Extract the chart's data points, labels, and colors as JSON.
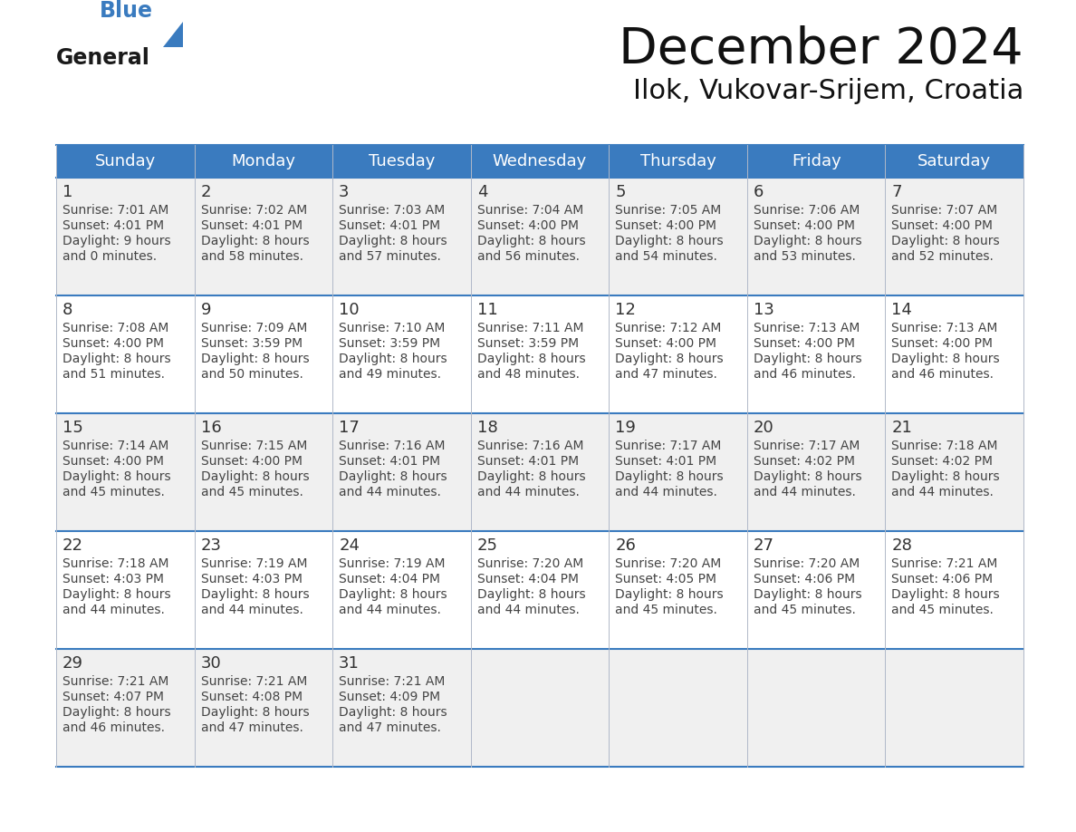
{
  "title": "December 2024",
  "subtitle": "Ilok, Vukovar-Srijem, Croatia",
  "days_of_week": [
    "Sunday",
    "Monday",
    "Tuesday",
    "Wednesday",
    "Thursday",
    "Friday",
    "Saturday"
  ],
  "header_bg": "#3a7bbf",
  "header_text": "#ffffff",
  "cell_bg_odd": "#f0f0f0",
  "cell_bg_even": "#ffffff",
  "border_color": "#3a7bbf",
  "day_text_color": "#333333",
  "info_text_color": "#444444",
  "calendar": [
    [
      {
        "day": 1,
        "sunrise": "7:01 AM",
        "sunset": "4:01 PM",
        "daylight_h": "9 hours",
        "daylight_m": "0 minutes."
      },
      {
        "day": 2,
        "sunrise": "7:02 AM",
        "sunset": "4:01 PM",
        "daylight_h": "8 hours",
        "daylight_m": "58 minutes."
      },
      {
        "day": 3,
        "sunrise": "7:03 AM",
        "sunset": "4:01 PM",
        "daylight_h": "8 hours",
        "daylight_m": "57 minutes."
      },
      {
        "day": 4,
        "sunrise": "7:04 AM",
        "sunset": "4:00 PM",
        "daylight_h": "8 hours",
        "daylight_m": "56 minutes."
      },
      {
        "day": 5,
        "sunrise": "7:05 AM",
        "sunset": "4:00 PM",
        "daylight_h": "8 hours",
        "daylight_m": "54 minutes."
      },
      {
        "day": 6,
        "sunrise": "7:06 AM",
        "sunset": "4:00 PM",
        "daylight_h": "8 hours",
        "daylight_m": "53 minutes."
      },
      {
        "day": 7,
        "sunrise": "7:07 AM",
        "sunset": "4:00 PM",
        "daylight_h": "8 hours",
        "daylight_m": "52 minutes."
      }
    ],
    [
      {
        "day": 8,
        "sunrise": "7:08 AM",
        "sunset": "4:00 PM",
        "daylight_h": "8 hours",
        "daylight_m": "51 minutes."
      },
      {
        "day": 9,
        "sunrise": "7:09 AM",
        "sunset": "3:59 PM",
        "daylight_h": "8 hours",
        "daylight_m": "50 minutes."
      },
      {
        "day": 10,
        "sunrise": "7:10 AM",
        "sunset": "3:59 PM",
        "daylight_h": "8 hours",
        "daylight_m": "49 minutes."
      },
      {
        "day": 11,
        "sunrise": "7:11 AM",
        "sunset": "3:59 PM",
        "daylight_h": "8 hours",
        "daylight_m": "48 minutes."
      },
      {
        "day": 12,
        "sunrise": "7:12 AM",
        "sunset": "4:00 PM",
        "daylight_h": "8 hours",
        "daylight_m": "47 minutes."
      },
      {
        "day": 13,
        "sunrise": "7:13 AM",
        "sunset": "4:00 PM",
        "daylight_h": "8 hours",
        "daylight_m": "46 minutes."
      },
      {
        "day": 14,
        "sunrise": "7:13 AM",
        "sunset": "4:00 PM",
        "daylight_h": "8 hours",
        "daylight_m": "46 minutes."
      }
    ],
    [
      {
        "day": 15,
        "sunrise": "7:14 AM",
        "sunset": "4:00 PM",
        "daylight_h": "8 hours",
        "daylight_m": "45 minutes."
      },
      {
        "day": 16,
        "sunrise": "7:15 AM",
        "sunset": "4:00 PM",
        "daylight_h": "8 hours",
        "daylight_m": "45 minutes."
      },
      {
        "day": 17,
        "sunrise": "7:16 AM",
        "sunset": "4:01 PM",
        "daylight_h": "8 hours",
        "daylight_m": "44 minutes."
      },
      {
        "day": 18,
        "sunrise": "7:16 AM",
        "sunset": "4:01 PM",
        "daylight_h": "8 hours",
        "daylight_m": "44 minutes."
      },
      {
        "day": 19,
        "sunrise": "7:17 AM",
        "sunset": "4:01 PM",
        "daylight_h": "8 hours",
        "daylight_m": "44 minutes."
      },
      {
        "day": 20,
        "sunrise": "7:17 AM",
        "sunset": "4:02 PM",
        "daylight_h": "8 hours",
        "daylight_m": "44 minutes."
      },
      {
        "day": 21,
        "sunrise": "7:18 AM",
        "sunset": "4:02 PM",
        "daylight_h": "8 hours",
        "daylight_m": "44 minutes."
      }
    ],
    [
      {
        "day": 22,
        "sunrise": "7:18 AM",
        "sunset": "4:03 PM",
        "daylight_h": "8 hours",
        "daylight_m": "44 minutes."
      },
      {
        "day": 23,
        "sunrise": "7:19 AM",
        "sunset": "4:03 PM",
        "daylight_h": "8 hours",
        "daylight_m": "44 minutes."
      },
      {
        "day": 24,
        "sunrise": "7:19 AM",
        "sunset": "4:04 PM",
        "daylight_h": "8 hours",
        "daylight_m": "44 minutes."
      },
      {
        "day": 25,
        "sunrise": "7:20 AM",
        "sunset": "4:04 PM",
        "daylight_h": "8 hours",
        "daylight_m": "44 minutes."
      },
      {
        "day": 26,
        "sunrise": "7:20 AM",
        "sunset": "4:05 PM",
        "daylight_h": "8 hours",
        "daylight_m": "45 minutes."
      },
      {
        "day": 27,
        "sunrise": "7:20 AM",
        "sunset": "4:06 PM",
        "daylight_h": "8 hours",
        "daylight_m": "45 minutes."
      },
      {
        "day": 28,
        "sunrise": "7:21 AM",
        "sunset": "4:06 PM",
        "daylight_h": "8 hours",
        "daylight_m": "45 minutes."
      }
    ],
    [
      {
        "day": 29,
        "sunrise": "7:21 AM",
        "sunset": "4:07 PM",
        "daylight_h": "8 hours",
        "daylight_m": "46 minutes."
      },
      {
        "day": 30,
        "sunrise": "7:21 AM",
        "sunset": "4:08 PM",
        "daylight_h": "8 hours",
        "daylight_m": "47 minutes."
      },
      {
        "day": 31,
        "sunrise": "7:21 AM",
        "sunset": "4:09 PM",
        "daylight_h": "8 hours",
        "daylight_m": "47 minutes."
      },
      null,
      null,
      null,
      null
    ]
  ],
  "logo_text_general": "General",
  "logo_text_blue": "Blue",
  "logo_triangle_color": "#3a7bbf",
  "fig_width": 11.88,
  "fig_height": 9.18,
  "dpi": 100
}
